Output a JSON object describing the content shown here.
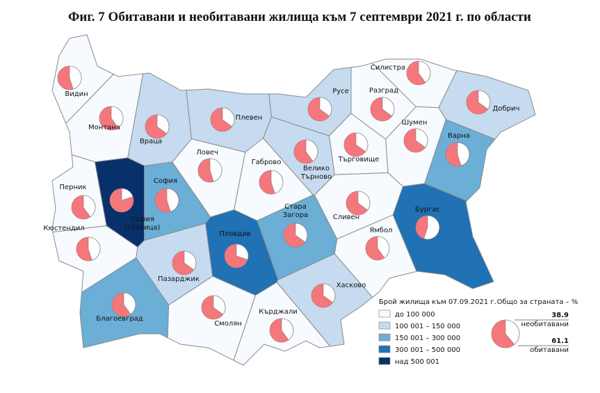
{
  "title": "Фиг. 7 Обитавани и необитавани жилища към 7 септември 2021 г. по области",
  "regions": [
    {
      "name": "Видин",
      "color": "#f7fbff",
      "uninhabited": 45
    },
    {
      "name": "Монтана",
      "color": "#f7fbff",
      "uninhabited": 40
    },
    {
      "name": "Враца",
      "color": "#c6dbef",
      "uninhabited": 35
    },
    {
      "name": "Плевен",
      "color": "#c6dbef",
      "uninhabited": 35
    },
    {
      "name": "Ловеч",
      "color": "#f7fbff",
      "uninhabited": 45
    },
    {
      "name": "Габрово",
      "color": "#f7fbff",
      "uninhabited": 45
    },
    {
      "name": "Велико Търново",
      "color": "#c6dbef",
      "uninhabited": 40
    },
    {
      "name": "Русе",
      "color": "#c6dbef",
      "uninhabited": 35
    },
    {
      "name": "Разград",
      "color": "#f7fbff",
      "uninhabited": 35
    },
    {
      "name": "Силистра",
      "color": "#f7fbff",
      "uninhabited": 40
    },
    {
      "name": "Добрич",
      "color": "#c6dbef",
      "uninhabited": 35
    },
    {
      "name": "Шумен",
      "color": "#f7fbff",
      "uninhabited": 35
    },
    {
      "name": "Търговище",
      "color": "#f7fbff",
      "uninhabited": 35
    },
    {
      "name": "Варна",
      "color": "#6baed6",
      "uninhabited": 45
    },
    {
      "name": "Бургас",
      "color": "#2171b5",
      "uninhabited": 55
    },
    {
      "name": "Ямбол",
      "color": "#f7fbff",
      "uninhabited": 40
    },
    {
      "name": "Сливен",
      "color": "#f7fbff",
      "uninhabited": 35
    },
    {
      "name": "Стара Загора",
      "color": "#6baed6",
      "uninhabited": 35
    },
    {
      "name": "Пловдив",
      "color": "#2171b5",
      "uninhabited": 30
    },
    {
      "name": "Хасково",
      "color": "#c6dbef",
      "uninhabited": 35
    },
    {
      "name": "Кърджали",
      "color": "#f7fbff",
      "uninhabited": 40
    },
    {
      "name": "Смолян",
      "color": "#f7fbff",
      "uninhabited": 35
    },
    {
      "name": "Пазарджик",
      "color": "#c6dbef",
      "uninhabited": 35
    },
    {
      "name": "Благоевград",
      "color": "#6baed6",
      "uninhabited": 40
    },
    {
      "name": "Кюстендил",
      "color": "#f7fbff",
      "uninhabited": 45
    },
    {
      "name": "Перник",
      "color": "#f7fbff",
      "uninhabited": 40
    },
    {
      "name": "София (столица)",
      "color": "#08306b",
      "uninhabited": 20
    },
    {
      "name": "София",
      "color": "#6baed6",
      "uninhabited": 45
    }
  ],
  "legend": {
    "title": "Брой жилища към 07.09.2021 г.",
    "classes": [
      {
        "label": "до 100 000",
        "color": "#f7fbff"
      },
      {
        "label": "100 001 – 150 000",
        "color": "#c6dbef"
      },
      {
        "label": "150 001 – 300 000",
        "color": "#6baed6"
      },
      {
        "label": "300 001 – 500 000",
        "color": "#2171b5"
      },
      {
        "label": "над 500 001",
        "color": "#08306b"
      }
    ]
  },
  "total": {
    "title": "Общо за страната – %",
    "uninhabited": 38.9,
    "uninhabited_label": "необитавани",
    "inhabited": 61.1,
    "inhabited_label": "обитавани"
  }
}
